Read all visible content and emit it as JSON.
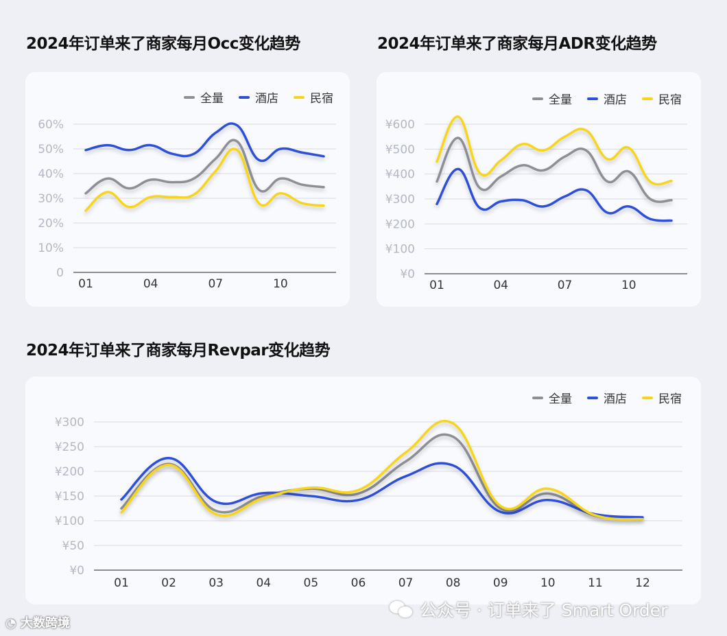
{
  "colors": {
    "all": "#8e8e96",
    "hotel": "#2f4fd8",
    "homestay": "#f6d51c",
    "grid": "#d9dbe4",
    "tick": "#b4b7c6"
  },
  "legend": [
    "全量",
    "酒店",
    "民宿"
  ],
  "watermark": {
    "left": "大数跨境",
    "right": "公众号 · 订单来了 Smart Order"
  },
  "chart_data": [
    {
      "id": "occ",
      "type": "line",
      "title": "2024年订单来了商家每月Occ变化趋势",
      "x": [
        1,
        2,
        3,
        4,
        5,
        6,
        7,
        8,
        9,
        10,
        11,
        12
      ],
      "xticks": [
        "01",
        "04",
        "07",
        "10"
      ],
      "xtick_positions": [
        1,
        4,
        7,
        10
      ],
      "yticks": [
        "0",
        "10%",
        "20%",
        "30%",
        "40%",
        "50%",
        "60%"
      ],
      "ylim": [
        0,
        60
      ],
      "series": [
        {
          "name": "全量",
          "values": [
            32,
            38,
            34,
            37.5,
            36.5,
            38,
            46,
            53,
            33.5,
            38,
            35.5,
            34.5
          ]
        },
        {
          "name": "酒店",
          "values": [
            49.5,
            51.5,
            49.5,
            51.5,
            48,
            48,
            56.5,
            59.5,
            45.5,
            50,
            48.5,
            47
          ]
        },
        {
          "name": "民宿",
          "values": [
            25,
            32.5,
            26.5,
            30.5,
            30.5,
            31.5,
            41,
            49.5,
            28,
            32,
            28,
            27
          ]
        }
      ]
    },
    {
      "id": "adr",
      "type": "line",
      "title": "2024年订单来了商家每月ADR变化趋势",
      "x": [
        1,
        2,
        3,
        4,
        5,
        6,
        7,
        8,
        9,
        10,
        11,
        12
      ],
      "xticks": [
        "01",
        "04",
        "07",
        "10"
      ],
      "xtick_positions": [
        1,
        4,
        7,
        10
      ],
      "yticks": [
        "¥0",
        "¥100",
        "¥200",
        "¥300",
        "¥400",
        "¥500",
        "¥600"
      ],
      "ylim": [
        0,
        600
      ],
      "series": [
        {
          "name": "全量",
          "values": [
            370,
            545,
            345,
            390,
            435,
            415,
            470,
            495,
            370,
            410,
            300,
            295
          ]
        },
        {
          "name": "酒店",
          "values": [
            280,
            420,
            265,
            290,
            295,
            270,
            310,
            335,
            245,
            270,
            220,
            213
          ]
        },
        {
          "name": "民宿",
          "values": [
            450,
            630,
            405,
            455,
            520,
            495,
            550,
            575,
            460,
            505,
            370,
            372
          ]
        }
      ]
    },
    {
      "id": "revpar",
      "type": "line",
      "title": "2024年订单来了商家每月Revpar变化趋势",
      "x": [
        1,
        2,
        3,
        4,
        5,
        6,
        7,
        8,
        9,
        10,
        11,
        12
      ],
      "xticks": [
        "01",
        "02",
        "03",
        "04",
        "05",
        "06",
        "07",
        "08",
        "09",
        "10",
        "11",
        "12"
      ],
      "xtick_positions": [
        1,
        2,
        3,
        4,
        5,
        6,
        7,
        8,
        9,
        10,
        11,
        12
      ],
      "yticks": [
        "¥0",
        "¥50",
        "¥100",
        "¥150",
        "¥200",
        "¥250",
        "¥300"
      ],
      "ylim": [
        0,
        300
      ],
      "series": [
        {
          "name": "全量",
          "values": [
            125,
            215,
            120,
            150,
            165,
            155,
            220,
            270,
            125,
            155,
            110,
            105
          ]
        },
        {
          "name": "酒店",
          "values": [
            143,
            227,
            138,
            156,
            150,
            142,
            190,
            212,
            118,
            142,
            113,
            107
          ]
        },
        {
          "name": "民宿",
          "values": [
            117,
            213,
            113,
            146,
            167,
            162,
            238,
            297,
            130,
            165,
            111,
            103
          ]
        }
      ]
    }
  ]
}
